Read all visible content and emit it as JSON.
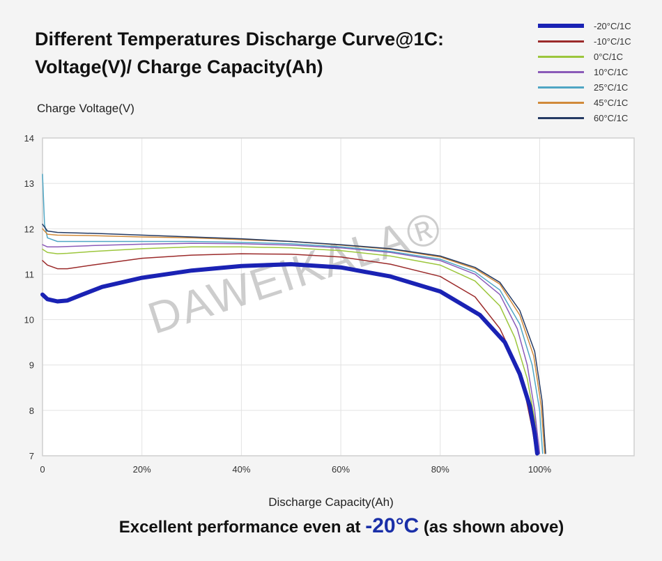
{
  "header": {
    "title_line1": "Different Temperatures Discharge Curve@1C:",
    "title_line2": "Voltage(V)/ Charge Capacity(Ah)"
  },
  "footer": {
    "text_before": "Excellent performance even at ",
    "highlight": "-20°C",
    "text_after": " (as shown above)"
  },
  "watermark": "DAWEIKALA®",
  "colors": {
    "plot_bg": "#ffffff",
    "grid": "#e2e2e2",
    "axis": "#cfcfcf",
    "footer_highlight": "#1a2fa8"
  },
  "chart_data": {
    "type": "line",
    "title": "Different Temperatures Discharge Curve@1C: Voltage(V)/ Charge Capacity(Ah)",
    "ylabel": "Charge Voltage(V)",
    "xlabel": "Discharge Capacity(Ah)",
    "xlim": [
      0,
      119
    ],
    "ylim": [
      7,
      14
    ],
    "x_ticks": [
      0,
      20,
      40,
      60,
      80,
      100
    ],
    "x_tick_labels": [
      "0",
      "20%",
      "40%",
      "60%",
      "80%",
      "100%"
    ],
    "y_ticks": [
      7,
      8,
      9,
      10,
      11,
      12,
      13,
      14
    ],
    "y_tick_labels": [
      "7",
      "8",
      "9",
      "10",
      "11",
      "12",
      "13",
      "14"
    ],
    "grid": true,
    "legend_position": "top-right",
    "series": [
      {
        "name": "-20°C/1C",
        "color": "#1a22b4",
        "width": 6,
        "points": [
          [
            0,
            10.55
          ],
          [
            1,
            10.45
          ],
          [
            3,
            10.4
          ],
          [
            5,
            10.42
          ],
          [
            8,
            10.55
          ],
          [
            12,
            10.72
          ],
          [
            20,
            10.92
          ],
          [
            30,
            11.08
          ],
          [
            40,
            11.18
          ],
          [
            50,
            11.22
          ],
          [
            60,
            11.15
          ],
          [
            70,
            10.95
          ],
          [
            80,
            10.62
          ],
          [
            88,
            10.1
          ],
          [
            93,
            9.5
          ],
          [
            96,
            8.8
          ],
          [
            98,
            8.1
          ],
          [
            99,
            7.5
          ],
          [
            99.5,
            7.05
          ]
        ]
      },
      {
        "name": "-10°C/1C",
        "color": "#9b2a2a",
        "width": 1.5,
        "points": [
          [
            0,
            11.3
          ],
          [
            1,
            11.2
          ],
          [
            3,
            11.12
          ],
          [
            5,
            11.12
          ],
          [
            10,
            11.2
          ],
          [
            20,
            11.35
          ],
          [
            30,
            11.42
          ],
          [
            40,
            11.45
          ],
          [
            50,
            11.44
          ],
          [
            60,
            11.38
          ],
          [
            70,
            11.22
          ],
          [
            80,
            10.95
          ],
          [
            87,
            10.5
          ],
          [
            92,
            9.8
          ],
          [
            95,
            9.1
          ],
          [
            97,
            8.4
          ],
          [
            98.5,
            7.6
          ],
          [
            99.3,
            7.05
          ]
        ]
      },
      {
        "name": "0°C/1C",
        "color": "#9cc63c",
        "width": 1.5,
        "points": [
          [
            0,
            11.55
          ],
          [
            1,
            11.48
          ],
          [
            3,
            11.45
          ],
          [
            5,
            11.46
          ],
          [
            10,
            11.5
          ],
          [
            20,
            11.56
          ],
          [
            30,
            11.6
          ],
          [
            40,
            11.6
          ],
          [
            50,
            11.58
          ],
          [
            60,
            11.52
          ],
          [
            70,
            11.4
          ],
          [
            80,
            11.2
          ],
          [
            87,
            10.85
          ],
          [
            92,
            10.3
          ],
          [
            95,
            9.6
          ],
          [
            97.5,
            8.7
          ],
          [
            99,
            7.8
          ],
          [
            99.8,
            7.05
          ]
        ]
      },
      {
        "name": "10°C/1C",
        "color": "#8a5ab8",
        "width": 1.5,
        "points": [
          [
            0,
            11.65
          ],
          [
            1,
            11.6
          ],
          [
            3,
            11.6
          ],
          [
            10,
            11.63
          ],
          [
            20,
            11.66
          ],
          [
            30,
            11.68
          ],
          [
            40,
            11.67
          ],
          [
            50,
            11.64
          ],
          [
            60,
            11.58
          ],
          [
            70,
            11.48
          ],
          [
            80,
            11.3
          ],
          [
            87,
            11.0
          ],
          [
            92,
            10.55
          ],
          [
            95.5,
            9.8
          ],
          [
            97.5,
            9.0
          ],
          [
            99,
            8.0
          ],
          [
            100,
            7.05
          ]
        ]
      },
      {
        "name": "25°C/1C",
        "color": "#4fa6c4",
        "width": 1.5,
        "points": [
          [
            0,
            13.2
          ],
          [
            0.4,
            12.1
          ],
          [
            1,
            11.8
          ],
          [
            3,
            11.72
          ],
          [
            10,
            11.72
          ],
          [
            20,
            11.72
          ],
          [
            30,
            11.72
          ],
          [
            40,
            11.7
          ],
          [
            50,
            11.67
          ],
          [
            60,
            11.6
          ],
          [
            70,
            11.5
          ],
          [
            80,
            11.33
          ],
          [
            87,
            11.05
          ],
          [
            92,
            10.65
          ],
          [
            96,
            9.9
          ],
          [
            98.5,
            9.0
          ],
          [
            100,
            8.0
          ],
          [
            100.6,
            7.05
          ]
        ]
      },
      {
        "name": "45°C/1C",
        "color": "#d08a3a",
        "width": 1.5,
        "points": [
          [
            0,
            12.0
          ],
          [
            1,
            11.88
          ],
          [
            3,
            11.86
          ],
          [
            10,
            11.85
          ],
          [
            20,
            11.82
          ],
          [
            30,
            11.8
          ],
          [
            40,
            11.76
          ],
          [
            50,
            11.72
          ],
          [
            60,
            11.64
          ],
          [
            70,
            11.55
          ],
          [
            80,
            11.38
          ],
          [
            87,
            11.12
          ],
          [
            92,
            10.78
          ],
          [
            96,
            10.1
          ],
          [
            98.8,
            9.2
          ],
          [
            100.3,
            8.1
          ],
          [
            101,
            7.05
          ]
        ]
      },
      {
        "name": "60°C/1C",
        "color": "#243a63",
        "width": 1.5,
        "points": [
          [
            0,
            12.1
          ],
          [
            1,
            11.95
          ],
          [
            3,
            11.92
          ],
          [
            10,
            11.9
          ],
          [
            20,
            11.86
          ],
          [
            30,
            11.82
          ],
          [
            40,
            11.78
          ],
          [
            50,
            11.72
          ],
          [
            60,
            11.65
          ],
          [
            70,
            11.56
          ],
          [
            80,
            11.4
          ],
          [
            87,
            11.15
          ],
          [
            92,
            10.82
          ],
          [
            96,
            10.2
          ],
          [
            99,
            9.3
          ],
          [
            100.5,
            8.2
          ],
          [
            101.2,
            7.05
          ]
        ]
      }
    ]
  }
}
